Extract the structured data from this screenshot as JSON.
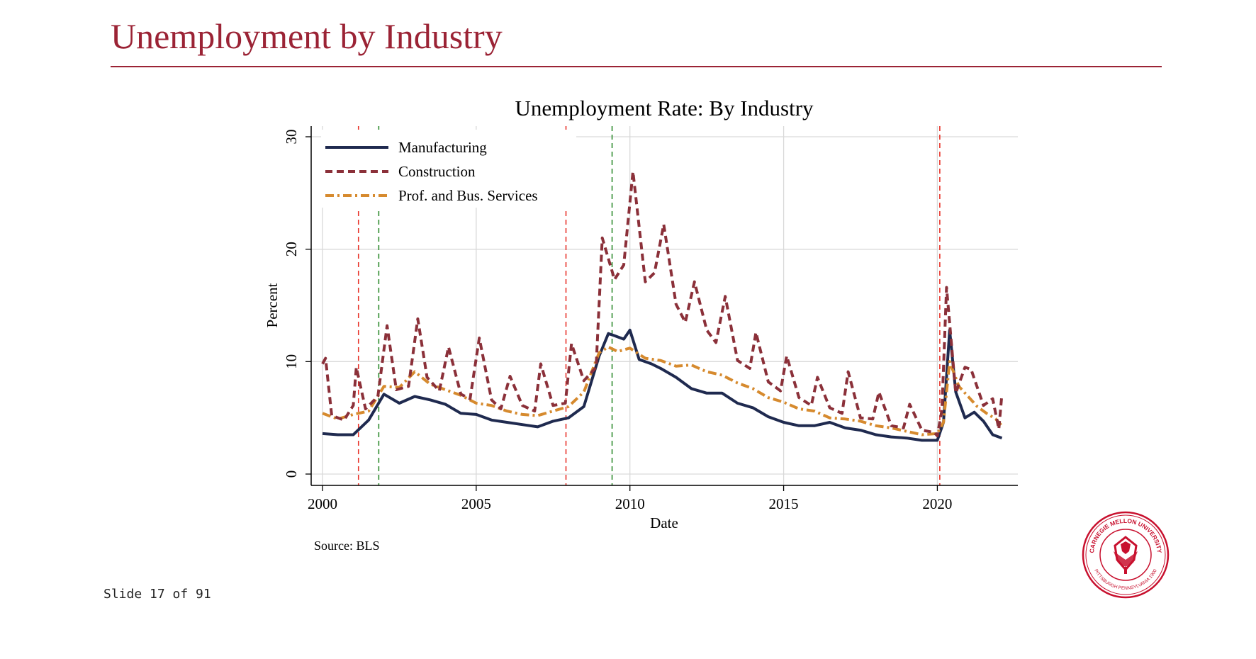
{
  "slide": {
    "title": "Unemployment by Industry",
    "counter": "Slide 17 of 91",
    "accent_color": "#9b2335"
  },
  "seal": {
    "text_top": "CARNEGIE MELLON UNIVERSITY",
    "text_bottom": "PITTSBURGH PENNSYLVANIA 1900",
    "icon": "thistle-icon",
    "color": "#c8102e"
  },
  "chart_data": {
    "type": "line",
    "title": "Unemployment Rate: By Industry",
    "xlabel": "Date",
    "ylabel": "Percent",
    "source": "Source: BLS",
    "xlim": [
      2000,
      2022.25
    ],
    "ylim": [
      0,
      30
    ],
    "xticks": [
      2000,
      2005,
      2010,
      2015,
      2020
    ],
    "yticks": [
      0,
      10,
      20,
      30
    ],
    "grid": true,
    "legend_position": "top-left",
    "vlines": [
      {
        "x": 2001.17,
        "color": "#e8332a"
      },
      {
        "x": 2001.83,
        "color": "#2e8b2e"
      },
      {
        "x": 2007.92,
        "color": "#e8332a"
      },
      {
        "x": 2009.42,
        "color": "#2e8b2e"
      },
      {
        "x": 2020.08,
        "color": "#e8332a"
      }
    ],
    "series": [
      {
        "name": "Manufacturing",
        "color": "#1f2a4f",
        "dash": "solid",
        "x": [
          2000,
          2000.5,
          2001,
          2001.5,
          2002,
          2002.5,
          2003,
          2003.5,
          2004,
          2004.5,
          2005,
          2005.5,
          2006,
          2006.5,
          2007,
          2007.5,
          2008,
          2008.5,
          2009,
          2009.3,
          2009.5,
          2009.8,
          2010,
          2010.3,
          2010.7,
          2011,
          2011.5,
          2012,
          2012.5,
          2013,
          2013.5,
          2014,
          2014.5,
          2015,
          2015.5,
          2016,
          2016.5,
          2017,
          2017.5,
          2018,
          2018.5,
          2019,
          2019.5,
          2020,
          2020.2,
          2020.4,
          2020.6,
          2020.9,
          2021.2,
          2021.5,
          2021.8,
          2022.1
        ],
        "y": [
          3.6,
          3.5,
          3.5,
          4.8,
          7.1,
          6.3,
          6.9,
          6.6,
          6.2,
          5.4,
          5.3,
          4.8,
          4.6,
          4.4,
          4.2,
          4.7,
          5.0,
          6.0,
          10.5,
          12.5,
          12.3,
          12.0,
          12.8,
          10.2,
          9.8,
          9.4,
          8.6,
          7.6,
          7.2,
          7.2,
          6.3,
          5.9,
          5.1,
          4.6,
          4.3,
          4.3,
          4.6,
          4.1,
          3.9,
          3.5,
          3.3,
          3.2,
          3.0,
          3.0,
          4.6,
          12.8,
          7.3,
          5.0,
          5.5,
          4.7,
          3.5,
          3.2
        ]
      },
      {
        "name": "Construction",
        "color": "#8b3039",
        "dash": "dash",
        "x": [
          2000,
          2000.1,
          2000.3,
          2000.7,
          2001.0,
          2001.1,
          2001.4,
          2001.8,
          2002.1,
          2002.4,
          2002.8,
          2003.1,
          2003.4,
          2003.8,
          2004.1,
          2004.5,
          2004.8,
          2005.1,
          2005.5,
          2005.8,
          2006.1,
          2006.5,
          2006.9,
          2007.1,
          2007.5,
          2007.9,
          2008.1,
          2008.5,
          2008.9,
          2009.1,
          2009.5,
          2009.8,
          2010.1,
          2010.5,
          2010.8,
          2011.1,
          2011.5,
          2011.8,
          2012.1,
          2012.5,
          2012.8,
          2013.1,
          2013.5,
          2013.9,
          2014.1,
          2014.5,
          2014.9,
          2015.1,
          2015.5,
          2015.9,
          2016.1,
          2016.5,
          2016.9,
          2017.1,
          2017.5,
          2017.9,
          2018.1,
          2018.5,
          2018.9,
          2019.1,
          2019.5,
          2019.9,
          2020.0,
          2020.15,
          2020.3,
          2020.6,
          2020.9,
          2021.1,
          2021.5,
          2021.8,
          2022.0,
          2022.1
        ],
        "y": [
          9.8,
          10.3,
          5.2,
          4.8,
          6.1,
          9.5,
          5.8,
          6.9,
          13.2,
          7.5,
          7.8,
          13.8,
          8.6,
          7.4,
          11.3,
          7.1,
          6.7,
          12.1,
          6.6,
          5.8,
          8.7,
          6.1,
          5.6,
          9.8,
          6.1,
          6.3,
          11.6,
          8.3,
          9.5,
          21.0,
          17.3,
          18.6,
          26.9,
          17.1,
          17.9,
          22.2,
          15.1,
          13.5,
          17.1,
          12.8,
          11.7,
          15.8,
          10.1,
          9.4,
          12.6,
          8.2,
          7.4,
          10.5,
          6.8,
          6.1,
          8.6,
          5.9,
          5.4,
          9.1,
          5.0,
          4.9,
          7.3,
          4.3,
          4.1,
          6.2,
          3.9,
          3.7,
          3.4,
          5.7,
          16.6,
          7.2,
          9.5,
          9.3,
          6.1,
          6.7,
          4.0,
          7.1
        ]
      },
      {
        "name": "Prof. and Bus. Services",
        "color": "#d68a2e",
        "dash": "dashdot",
        "x": [
          2000,
          2000.5,
          2001,
          2001.5,
          2002,
          2002.5,
          2003,
          2003.5,
          2004,
          2004.5,
          2005,
          2005.5,
          2006,
          2006.5,
          2007,
          2007.5,
          2008,
          2008.5,
          2009,
          2009.3,
          2009.6,
          2010,
          2010.5,
          2011,
          2011.5,
          2012,
          2012.5,
          2013,
          2013.5,
          2014,
          2014.5,
          2015,
          2015.5,
          2016,
          2016.5,
          2017,
          2017.5,
          2018,
          2018.5,
          2019,
          2019.5,
          2020,
          2020.2,
          2020.4,
          2020.7,
          2021,
          2021.3,
          2021.6,
          2021.9,
          2022.1
        ],
        "y": [
          5.4,
          4.9,
          5.3,
          5.6,
          7.8,
          7.7,
          9.1,
          8.0,
          7.5,
          7.0,
          6.3,
          6.1,
          5.6,
          5.3,
          5.2,
          5.6,
          6.0,
          7.3,
          10.8,
          11.3,
          10.9,
          11.2,
          10.3,
          10.1,
          9.6,
          9.7,
          9.1,
          8.8,
          8.1,
          7.6,
          6.8,
          6.4,
          5.8,
          5.6,
          5.0,
          4.9,
          4.7,
          4.3,
          4.1,
          3.8,
          3.5,
          3.6,
          4.6,
          10.0,
          7.8,
          6.9,
          6.0,
          5.4,
          4.9,
          4.3
        ]
      }
    ]
  }
}
